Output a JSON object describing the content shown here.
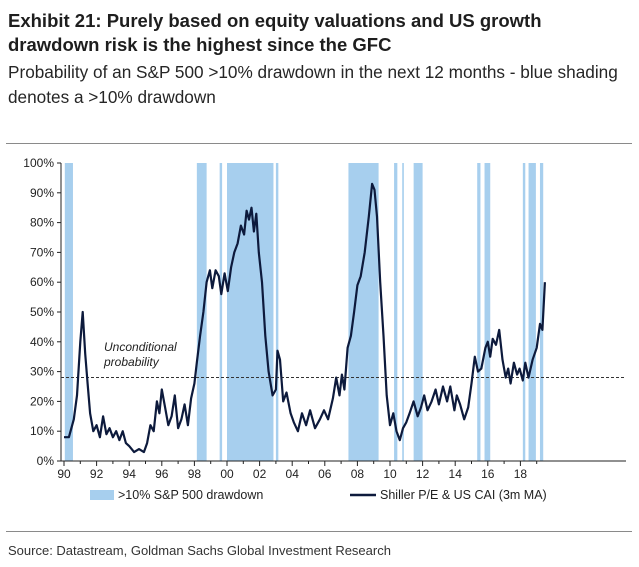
{
  "header": {
    "title": "Exhibit 21: Purely based on equity valuations and US growth drawdown risk is the highest since the GFC",
    "subtitle": "Probability of an S&P 500 >10% drawdown in the next 12 months - blue shading denotes a >10% drawdown"
  },
  "footer": {
    "source": "Source: Datastream, Goldman Sachs Global Investment Research"
  },
  "colors": {
    "shade": "#a7cfee",
    "line": "#0d1a3c",
    "refline": "#333333"
  },
  "chart_data": {
    "type": "line",
    "xlabel": "",
    "ylabel": "",
    "xlim": [
      1990,
      2019.7
    ],
    "ylim": [
      0,
      100
    ],
    "x_ticks": [
      1990,
      1992,
      1994,
      1996,
      1998,
      2000,
      2002,
      2004,
      2006,
      2008,
      2010,
      2012,
      2014,
      2016,
      2018
    ],
    "x_tick_labels": [
      "90",
      "92",
      "94",
      "96",
      "98",
      "00",
      "02",
      "04",
      "06",
      "08",
      "10",
      "12",
      "14",
      "16",
      "18"
    ],
    "y_ticks": [
      0,
      10,
      20,
      30,
      40,
      50,
      60,
      70,
      80,
      90,
      100
    ],
    "y_tick_labels": [
      "0%",
      "10%",
      "20%",
      "30%",
      "40%",
      "50%",
      "60%",
      "70%",
      "80%",
      "90%",
      "100%"
    ],
    "legend": {
      "shade_label": ">10% S&P 500 drawdown",
      "line_label": "Shiller P/E & US CAI (3m MA)",
      "placement": "bottom"
    },
    "reference_line": {
      "value": 28,
      "label_line1": "Unconditional",
      "label_line2": "probability"
    },
    "drawdown_periods": [
      [
        1990.05,
        1990.55
      ],
      [
        1998.15,
        1998.75
      ],
      [
        1999.55,
        1999.7
      ],
      [
        2000.0,
        2002.85
      ],
      [
        2003.0,
        2003.15
      ],
      [
        2007.45,
        2009.3
      ],
      [
        2010.25,
        2010.45
      ],
      [
        2010.75,
        2010.85
      ],
      [
        2011.45,
        2012.0
      ],
      [
        2015.35,
        2015.55
      ],
      [
        2015.8,
        2016.15
      ],
      [
        2018.15,
        2018.3
      ],
      [
        2018.5,
        2018.95
      ],
      [
        2019.2,
        2019.4
      ]
    ],
    "series": [
      {
        "name": "Shiller P/E & US CAI (3m MA)",
        "points": [
          [
            1990.0,
            8
          ],
          [
            1990.3,
            8
          ],
          [
            1990.6,
            14
          ],
          [
            1990.8,
            22
          ],
          [
            1991.0,
            40
          ],
          [
            1991.15,
            50
          ],
          [
            1991.3,
            36
          ],
          [
            1991.45,
            26
          ],
          [
            1991.6,
            16
          ],
          [
            1991.8,
            10
          ],
          [
            1992.0,
            12
          ],
          [
            1992.2,
            8
          ],
          [
            1992.4,
            15
          ],
          [
            1992.6,
            9
          ],
          [
            1992.8,
            11
          ],
          [
            1993.0,
            8
          ],
          [
            1993.2,
            10
          ],
          [
            1993.4,
            7
          ],
          [
            1993.6,
            10
          ],
          [
            1993.8,
            6
          ],
          [
            1994.0,
            5
          ],
          [
            1994.3,
            3
          ],
          [
            1994.6,
            4
          ],
          [
            1994.9,
            3
          ],
          [
            1995.1,
            6
          ],
          [
            1995.3,
            12
          ],
          [
            1995.5,
            10
          ],
          [
            1995.7,
            20
          ],
          [
            1995.85,
            16
          ],
          [
            1996.0,
            24
          ],
          [
            1996.2,
            18
          ],
          [
            1996.4,
            12
          ],
          [
            1996.6,
            15
          ],
          [
            1996.8,
            22
          ],
          [
            1997.0,
            11
          ],
          [
            1997.2,
            14
          ],
          [
            1997.4,
            19
          ],
          [
            1997.6,
            12
          ],
          [
            1997.8,
            21
          ],
          [
            1998.0,
            26
          ],
          [
            1998.15,
            33
          ],
          [
            1998.35,
            42
          ],
          [
            1998.55,
            50
          ],
          [
            1998.75,
            60
          ],
          [
            1998.95,
            64
          ],
          [
            1999.1,
            58
          ],
          [
            1999.3,
            64
          ],
          [
            1999.5,
            62
          ],
          [
            1999.65,
            56
          ],
          [
            1999.85,
            63
          ],
          [
            2000.05,
            57
          ],
          [
            2000.25,
            65
          ],
          [
            2000.45,
            70
          ],
          [
            2000.65,
            73
          ],
          [
            2000.85,
            79
          ],
          [
            2001.05,
            76
          ],
          [
            2001.2,
            84
          ],
          [
            2001.35,
            81
          ],
          [
            2001.5,
            85
          ],
          [
            2001.65,
            77
          ],
          [
            2001.8,
            83
          ],
          [
            2001.95,
            70
          ],
          [
            2002.15,
            60
          ],
          [
            2002.35,
            42
          ],
          [
            2002.55,
            30
          ],
          [
            2002.8,
            22
          ],
          [
            2003.0,
            24
          ],
          [
            2003.1,
            37
          ],
          [
            2003.25,
            34
          ],
          [
            2003.45,
            20
          ],
          [
            2003.65,
            23
          ],
          [
            2003.9,
            16
          ],
          [
            2004.1,
            13
          ],
          [
            2004.35,
            10
          ],
          [
            2004.6,
            16
          ],
          [
            2004.85,
            12
          ],
          [
            2005.1,
            17
          ],
          [
            2005.4,
            11
          ],
          [
            2005.7,
            14
          ],
          [
            2005.95,
            17
          ],
          [
            2006.2,
            14
          ],
          [
            2006.5,
            21
          ],
          [
            2006.7,
            28
          ],
          [
            2006.9,
            22
          ],
          [
            2007.05,
            29
          ],
          [
            2007.2,
            24
          ],
          [
            2007.4,
            38
          ],
          [
            2007.6,
            42
          ],
          [
            2007.8,
            50
          ],
          [
            2008.0,
            59
          ],
          [
            2008.2,
            62
          ],
          [
            2008.45,
            70
          ],
          [
            2008.7,
            82
          ],
          [
            2008.9,
            93
          ],
          [
            2009.05,
            91
          ],
          [
            2009.2,
            82
          ],
          [
            2009.4,
            60
          ],
          [
            2009.6,
            42
          ],
          [
            2009.8,
            22
          ],
          [
            2010.0,
            12
          ],
          [
            2010.2,
            16
          ],
          [
            2010.4,
            10
          ],
          [
            2010.6,
            7
          ],
          [
            2010.8,
            11
          ],
          [
            2011.0,
            13
          ],
          [
            2011.2,
            16
          ],
          [
            2011.45,
            20
          ],
          [
            2011.7,
            15
          ],
          [
            2011.9,
            18
          ],
          [
            2012.1,
            22
          ],
          [
            2012.3,
            17
          ],
          [
            2012.55,
            20
          ],
          [
            2012.8,
            24
          ],
          [
            2013.0,
            19
          ],
          [
            2013.25,
            25
          ],
          [
            2013.5,
            20
          ],
          [
            2013.7,
            25
          ],
          [
            2013.95,
            17
          ],
          [
            2014.1,
            22
          ],
          [
            2014.3,
            19
          ],
          [
            2014.55,
            14
          ],
          [
            2014.8,
            18
          ],
          [
            2015.0,
            26
          ],
          [
            2015.2,
            35
          ],
          [
            2015.4,
            30
          ],
          [
            2015.6,
            31
          ],
          [
            2015.85,
            38
          ],
          [
            2016.0,
            40
          ],
          [
            2016.15,
            35
          ],
          [
            2016.3,
            41
          ],
          [
            2016.5,
            39
          ],
          [
            2016.7,
            44
          ],
          [
            2016.9,
            34
          ],
          [
            2017.1,
            28
          ],
          [
            2017.25,
            31
          ],
          [
            2017.4,
            26
          ],
          [
            2017.6,
            33
          ],
          [
            2017.8,
            29
          ],
          [
            2017.95,
            31
          ],
          [
            2018.15,
            27
          ],
          [
            2018.3,
            33
          ],
          [
            2018.5,
            28
          ],
          [
            2018.75,
            34
          ],
          [
            2019.0,
            38
          ],
          [
            2019.2,
            46
          ],
          [
            2019.35,
            44
          ],
          [
            2019.5,
            60
          ]
        ]
      }
    ]
  }
}
